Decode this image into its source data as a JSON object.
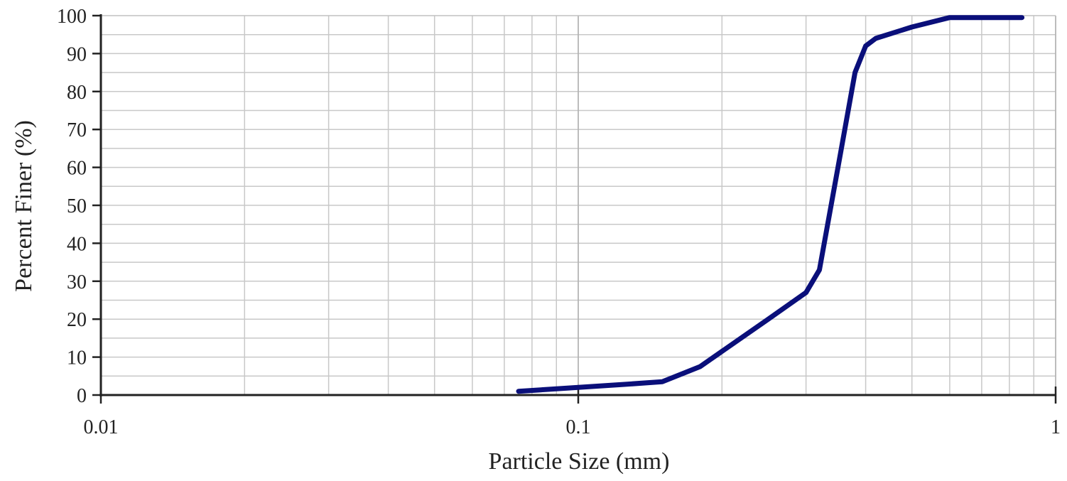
{
  "chart_data": {
    "type": "line",
    "title": "",
    "xlabel": "Particle Size (mm)",
    "ylabel": "Percent Finer (%)",
    "x_scale": "log",
    "xlim": [
      0.01,
      1
    ],
    "ylim": [
      0,
      100
    ],
    "x_ticks": [
      0.01,
      0.1,
      1
    ],
    "x_tick_labels": [
      "0.01",
      "0.1",
      "1"
    ],
    "y_ticks": [
      0,
      10,
      20,
      30,
      40,
      50,
      60,
      70,
      80,
      90,
      100
    ],
    "y_tick_labels": [
      "0",
      "10",
      "20",
      "30",
      "40",
      "50",
      "60",
      "70",
      "80",
      "90",
      "100"
    ],
    "grid": true,
    "legend": "none",
    "series": [
      {
        "color": "#0a0f7a",
        "x": [
          0.075,
          0.1,
          0.125,
          0.15,
          0.18,
          0.25,
          0.3,
          0.32,
          0.35,
          0.38,
          0.4,
          0.42,
          0.5,
          0.6,
          0.85
        ],
        "y": [
          1,
          2,
          2.8,
          3.5,
          7.5,
          20,
          27,
          33,
          60,
          85,
          92,
          94,
          97,
          99.5,
          99.5
        ]
      }
    ]
  }
}
